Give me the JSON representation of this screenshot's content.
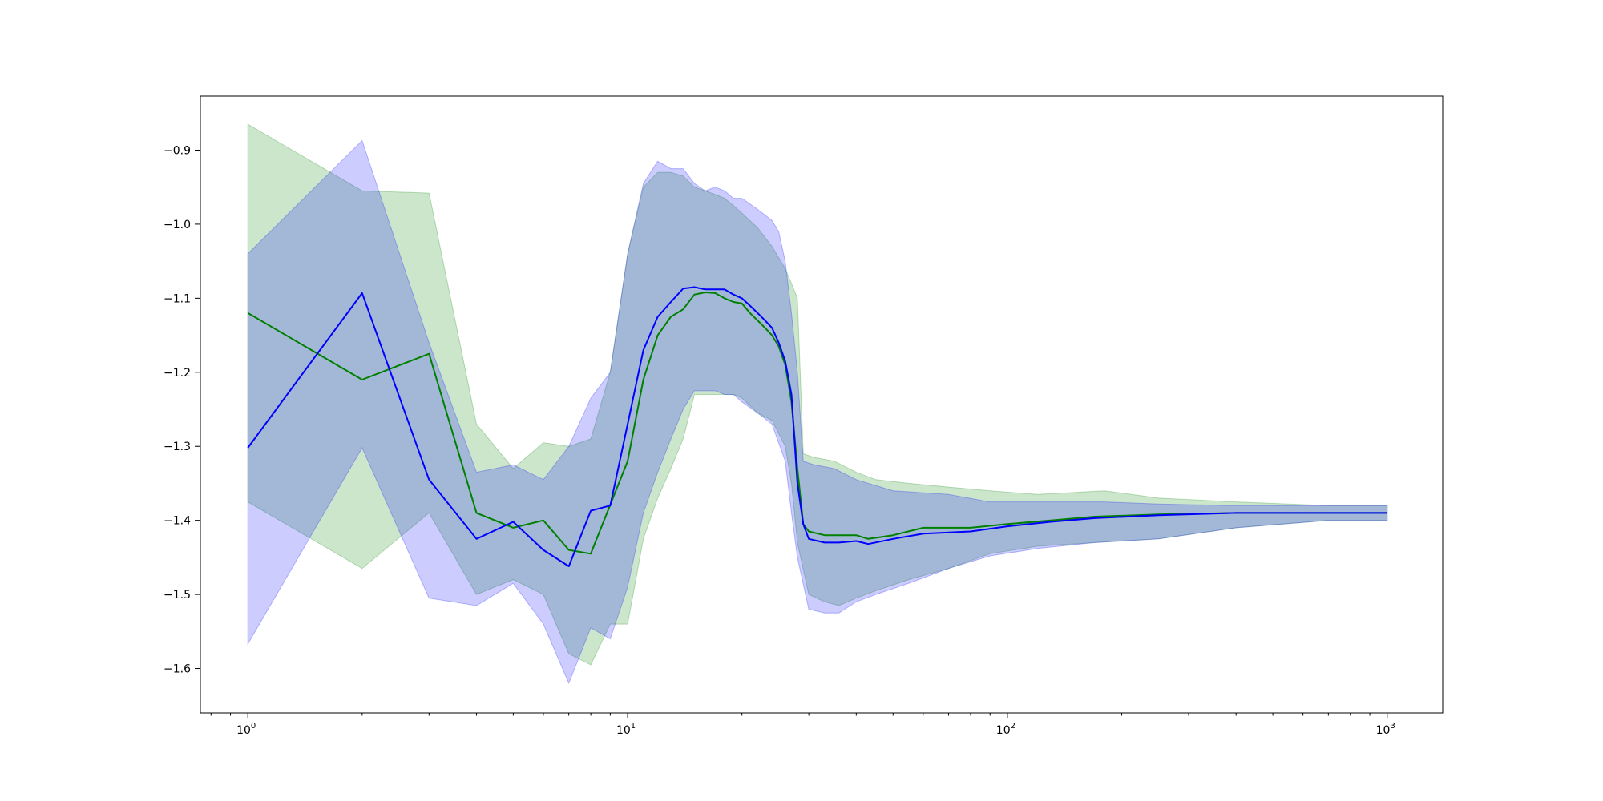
{
  "chart_data": {
    "type": "line",
    "title": "",
    "xlabel": "",
    "ylabel": "",
    "x_scale": "log",
    "xlim": [
      0.75,
      1400
    ],
    "ylim": [
      -1.66,
      -0.827
    ],
    "grid": false,
    "x_ticks": [
      {
        "value": 1,
        "base": "10",
        "exp": "0"
      },
      {
        "value": 10,
        "base": "10",
        "exp": "1"
      },
      {
        "value": 100,
        "base": "10",
        "exp": "2"
      },
      {
        "value": 1000,
        "base": "10",
        "exp": "3"
      }
    ],
    "y_ticks": [
      {
        "value": -0.9,
        "label": "−0.9"
      },
      {
        "value": -1.0,
        "label": "−1.0"
      },
      {
        "value": -1.1,
        "label": "−1.1"
      },
      {
        "value": -1.2,
        "label": "−1.2"
      },
      {
        "value": -1.3,
        "label": "−1.3"
      },
      {
        "value": -1.4,
        "label": "−1.4"
      },
      {
        "value": -1.5,
        "label": "−1.5"
      },
      {
        "value": -1.6,
        "label": "−1.6"
      }
    ],
    "series": [
      {
        "color": "#008000",
        "band_opacity": 0.2,
        "mean": [
          [
            1,
            -1.12
          ],
          [
            2,
            -1.21
          ],
          [
            3,
            -1.175
          ],
          [
            4,
            -1.39
          ],
          [
            5,
            -1.41
          ],
          [
            6,
            -1.4
          ],
          [
            7,
            -1.44
          ],
          [
            8,
            -1.445
          ],
          [
            10,
            -1.32
          ],
          [
            11,
            -1.21
          ],
          [
            12,
            -1.15
          ],
          [
            13,
            -1.125
          ],
          [
            14,
            -1.115
          ],
          [
            15,
            -1.095
          ],
          [
            16,
            -1.092
          ],
          [
            17,
            -1.093
          ],
          [
            18,
            -1.1
          ],
          [
            19,
            -1.105
          ],
          [
            20,
            -1.107
          ],
          [
            21,
            -1.12
          ],
          [
            22,
            -1.13
          ],
          [
            23,
            -1.14
          ],
          [
            24,
            -1.15
          ],
          [
            25,
            -1.165
          ],
          [
            26,
            -1.19
          ],
          [
            27,
            -1.24
          ],
          [
            28,
            -1.33
          ],
          [
            29,
            -1.405
          ],
          [
            30,
            -1.415
          ],
          [
            33,
            -1.42
          ],
          [
            36,
            -1.42
          ],
          [
            40,
            -1.42
          ],
          [
            43,
            -1.425
          ],
          [
            50,
            -1.42
          ],
          [
            60,
            -1.41
          ],
          [
            80,
            -1.41
          ],
          [
            100,
            -1.405
          ],
          [
            130,
            -1.4
          ],
          [
            170,
            -1.395
          ],
          [
            250,
            -1.392
          ],
          [
            400,
            -1.39
          ],
          [
            600,
            -1.39
          ],
          [
            1000,
            -1.39
          ]
        ],
        "upper": [
          [
            1,
            -0.865
          ],
          [
            2,
            -0.955
          ],
          [
            3,
            -0.958
          ],
          [
            4,
            -1.27
          ],
          [
            5,
            -1.33
          ],
          [
            6,
            -1.295
          ],
          [
            7,
            -1.3
          ],
          [
            8,
            -1.29
          ],
          [
            9,
            -1.2
          ],
          [
            10,
            -1.04
          ],
          [
            11,
            -0.95
          ],
          [
            12,
            -0.93
          ],
          [
            13,
            -0.93
          ],
          [
            14,
            -0.935
          ],
          [
            15,
            -0.95
          ],
          [
            16,
            -0.955
          ],
          [
            17,
            -0.96
          ],
          [
            18,
            -0.965
          ],
          [
            19,
            -0.975
          ],
          [
            20,
            -0.985
          ],
          [
            22,
            -1.005
          ],
          [
            24,
            -1.03
          ],
          [
            26,
            -1.06
          ],
          [
            27,
            -1.08
          ],
          [
            28,
            -1.1
          ],
          [
            29,
            -1.31
          ],
          [
            31,
            -1.315
          ],
          [
            35,
            -1.32
          ],
          [
            40,
            -1.335
          ],
          [
            45,
            -1.345
          ],
          [
            55,
            -1.35
          ],
          [
            70,
            -1.355
          ],
          [
            90,
            -1.36
          ],
          [
            120,
            -1.365
          ],
          [
            180,
            -1.36
          ],
          [
            250,
            -1.37
          ],
          [
            400,
            -1.375
          ],
          [
            700,
            -1.38
          ],
          [
            1000,
            -1.38
          ]
        ],
        "lower": [
          [
            1,
            -1.375
          ],
          [
            2,
            -1.465
          ],
          [
            3,
            -1.39
          ],
          [
            4,
            -1.5
          ],
          [
            5,
            -1.48
          ],
          [
            6,
            -1.5
          ],
          [
            7,
            -1.58
          ],
          [
            8,
            -1.595
          ],
          [
            9,
            -1.54
          ],
          [
            10,
            -1.54
          ],
          [
            11,
            -1.425
          ],
          [
            12,
            -1.37
          ],
          [
            13,
            -1.33
          ],
          [
            14,
            -1.29
          ],
          [
            15,
            -1.23
          ],
          [
            16,
            -1.23
          ],
          [
            17,
            -1.23
          ],
          [
            18,
            -1.23
          ],
          [
            19,
            -1.23
          ],
          [
            20,
            -1.235
          ],
          [
            22,
            -1.255
          ],
          [
            24,
            -1.265
          ],
          [
            26,
            -1.3
          ],
          [
            27,
            -1.35
          ],
          [
            28,
            -1.43
          ],
          [
            30,
            -1.5
          ],
          [
            33,
            -1.51
          ],
          [
            36,
            -1.515
          ],
          [
            40,
            -1.505
          ],
          [
            45,
            -1.495
          ],
          [
            55,
            -1.48
          ],
          [
            70,
            -1.465
          ],
          [
            90,
            -1.445
          ],
          [
            120,
            -1.435
          ],
          [
            170,
            -1.43
          ],
          [
            250,
            -1.425
          ],
          [
            400,
            -1.41
          ],
          [
            700,
            -1.4
          ],
          [
            1000,
            -1.4
          ]
        ]
      },
      {
        "color": "#0000ff",
        "band_opacity": 0.2,
        "mean": [
          [
            1,
            -1.302
          ],
          [
            2,
            -1.093
          ],
          [
            3,
            -1.345
          ],
          [
            4,
            -1.425
          ],
          [
            5,
            -1.402
          ],
          [
            6,
            -1.44
          ],
          [
            7,
            -1.462
          ],
          [
            8,
            -1.387
          ],
          [
            9,
            -1.38
          ],
          [
            10,
            -1.27
          ],
          [
            11,
            -1.17
          ],
          [
            12,
            -1.125
          ],
          [
            13,
            -1.105
          ],
          [
            14,
            -1.087
          ],
          [
            15,
            -1.085
          ],
          [
            16,
            -1.088
          ],
          [
            17,
            -1.088
          ],
          [
            18,
            -1.088
          ],
          [
            19,
            -1.095
          ],
          [
            20,
            -1.1
          ],
          [
            21,
            -1.11
          ],
          [
            22,
            -1.12
          ],
          [
            23,
            -1.13
          ],
          [
            24,
            -1.14
          ],
          [
            25,
            -1.16
          ],
          [
            26,
            -1.185
          ],
          [
            27,
            -1.23
          ],
          [
            28,
            -1.35
          ],
          [
            29,
            -1.405
          ],
          [
            30,
            -1.425
          ],
          [
            33,
            -1.43
          ],
          [
            36,
            -1.43
          ],
          [
            40,
            -1.428
          ],
          [
            43,
            -1.432
          ],
          [
            50,
            -1.425
          ],
          [
            60,
            -1.418
          ],
          [
            80,
            -1.415
          ],
          [
            100,
            -1.408
          ],
          [
            130,
            -1.402
          ],
          [
            170,
            -1.397
          ],
          [
            250,
            -1.393
          ],
          [
            400,
            -1.39
          ],
          [
            600,
            -1.39
          ],
          [
            1000,
            -1.39
          ]
        ],
        "upper": [
          [
            1,
            -1.04
          ],
          [
            2,
            -0.887
          ],
          [
            3,
            -1.16
          ],
          [
            4,
            -1.335
          ],
          [
            5,
            -1.325
          ],
          [
            6,
            -1.345
          ],
          [
            7,
            -1.3
          ],
          [
            8,
            -1.235
          ],
          [
            9,
            -1.2
          ],
          [
            10,
            -1.04
          ],
          [
            11,
            -0.945
          ],
          [
            12,
            -0.915
          ],
          [
            13,
            -0.925
          ],
          [
            14,
            -0.925
          ],
          [
            15,
            -0.945
          ],
          [
            16,
            -0.955
          ],
          [
            17,
            -0.95
          ],
          [
            18,
            -0.955
          ],
          [
            19,
            -0.965
          ],
          [
            20,
            -0.965
          ],
          [
            22,
            -0.98
          ],
          [
            24,
            -0.995
          ],
          [
            25,
            -1.01
          ],
          [
            26,
            -1.05
          ],
          [
            27,
            -1.12
          ],
          [
            28,
            -1.2
          ],
          [
            29,
            -1.32
          ],
          [
            31,
            -1.325
          ],
          [
            35,
            -1.33
          ],
          [
            40,
            -1.345
          ],
          [
            50,
            -1.36
          ],
          [
            70,
            -1.365
          ],
          [
            90,
            -1.375
          ],
          [
            120,
            -1.375
          ],
          [
            180,
            -1.375
          ],
          [
            250,
            -1.378
          ],
          [
            400,
            -1.38
          ],
          [
            700,
            -1.38
          ],
          [
            1000,
            -1.38
          ]
        ],
        "lower": [
          [
            1,
            -1.567
          ],
          [
            2,
            -1.302
          ],
          [
            3,
            -1.505
          ],
          [
            4,
            -1.515
          ],
          [
            5,
            -1.485
          ],
          [
            6,
            -1.54
          ],
          [
            7,
            -1.62
          ],
          [
            8,
            -1.545
          ],
          [
            9,
            -1.56
          ],
          [
            10,
            -1.49
          ],
          [
            11,
            -1.39
          ],
          [
            12,
            -1.335
          ],
          [
            13,
            -1.29
          ],
          [
            14,
            -1.25
          ],
          [
            15,
            -1.225
          ],
          [
            16,
            -1.225
          ],
          [
            17,
            -1.225
          ],
          [
            18,
            -1.23
          ],
          [
            19,
            -1.23
          ],
          [
            20,
            -1.24
          ],
          [
            22,
            -1.255
          ],
          [
            24,
            -1.27
          ],
          [
            26,
            -1.32
          ],
          [
            27,
            -1.39
          ],
          [
            28,
            -1.45
          ],
          [
            30,
            -1.52
          ],
          [
            33,
            -1.525
          ],
          [
            36,
            -1.525
          ],
          [
            40,
            -1.51
          ],
          [
            45,
            -1.5
          ],
          [
            55,
            -1.485
          ],
          [
            70,
            -1.465
          ],
          [
            90,
            -1.448
          ],
          [
            120,
            -1.438
          ],
          [
            170,
            -1.43
          ],
          [
            250,
            -1.425
          ],
          [
            400,
            -1.41
          ],
          [
            700,
            -1.4
          ],
          [
            1000,
            -1.4
          ]
        ]
      }
    ]
  }
}
